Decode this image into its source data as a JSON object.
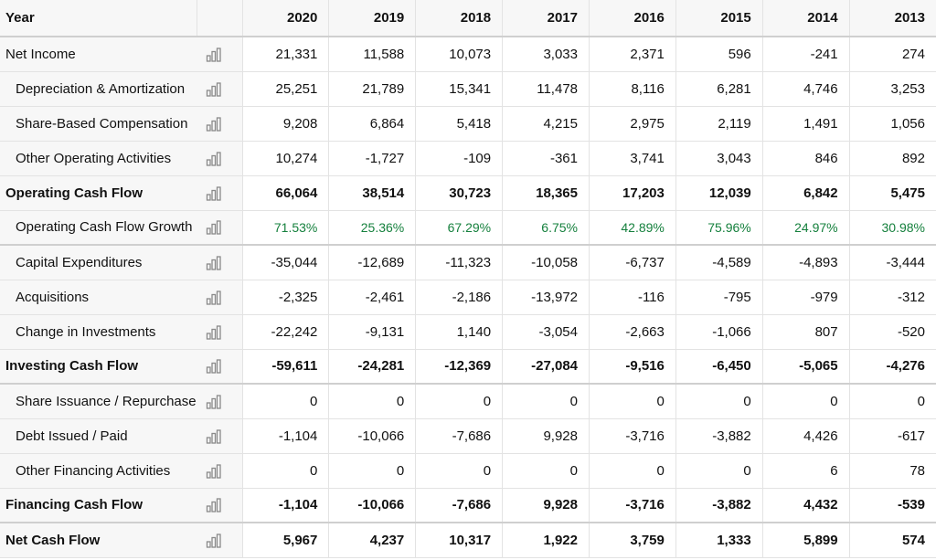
{
  "header": {
    "label": "Year",
    "years": [
      "2020",
      "2019",
      "2018",
      "2017",
      "2016",
      "2015",
      "2014",
      "2013"
    ]
  },
  "rows": [
    {
      "label": "Net Income",
      "values": [
        "21,331",
        "11,588",
        "10,073",
        "3,033",
        "2,371",
        "596",
        "-241",
        "274"
      ],
      "style": "bold-label-plain"
    },
    {
      "label": "Depreciation & Amortization",
      "values": [
        "25,251",
        "21,789",
        "15,341",
        "11,478",
        "8,116",
        "6,281",
        "4,746",
        "3,253"
      ],
      "style": "indent"
    },
    {
      "label": "Share-Based Compensation",
      "values": [
        "9,208",
        "6,864",
        "5,418",
        "4,215",
        "2,975",
        "2,119",
        "1,491",
        "1,056"
      ],
      "style": "indent"
    },
    {
      "label": "Other Operating Activities",
      "values": [
        "10,274",
        "-1,727",
        "-109",
        "-361",
        "3,741",
        "3,043",
        "846",
        "892"
      ],
      "style": "indent"
    },
    {
      "label": "Operating Cash Flow",
      "values": [
        "66,064",
        "38,514",
        "30,723",
        "18,365",
        "17,203",
        "12,039",
        "6,842",
        "5,475"
      ],
      "style": "bold"
    },
    {
      "label": "Operating Cash Flow Growth",
      "values": [
        "71.53%",
        "25.36%",
        "67.29%",
        "6.75%",
        "42.89%",
        "75.96%",
        "24.97%",
        "30.98%"
      ],
      "style": "growth"
    },
    {
      "label": "Capital Expenditures",
      "values": [
        "-35,044",
        "-12,689",
        "-11,323",
        "-10,058",
        "-6,737",
        "-4,589",
        "-4,893",
        "-3,444"
      ],
      "style": "indent"
    },
    {
      "label": "Acquisitions",
      "values": [
        "-2,325",
        "-2,461",
        "-2,186",
        "-13,972",
        "-116",
        "-795",
        "-979",
        "-312"
      ],
      "style": "indent"
    },
    {
      "label": "Change in Investments",
      "values": [
        "-22,242",
        "-9,131",
        "1,140",
        "-3,054",
        "-2,663",
        "-1,066",
        "807",
        "-520"
      ],
      "style": "indent"
    },
    {
      "label": "Investing Cash Flow",
      "values": [
        "-59,611",
        "-24,281",
        "-12,369",
        "-27,084",
        "-9,516",
        "-6,450",
        "-5,065",
        "-4,276"
      ],
      "style": "bold"
    },
    {
      "label": "Share Issuance / Repurchase",
      "values": [
        "0",
        "0",
        "0",
        "0",
        "0",
        "0",
        "0",
        "0"
      ],
      "style": "indent"
    },
    {
      "label": "Debt Issued / Paid",
      "values": [
        "-1,104",
        "-10,066",
        "-7,686",
        "9,928",
        "-3,716",
        "-3,882",
        "4,426",
        "-617"
      ],
      "style": "indent"
    },
    {
      "label": "Other Financing Activities",
      "values": [
        "0",
        "0",
        "0",
        "0",
        "0",
        "0",
        "6",
        "78"
      ],
      "style": "indent"
    },
    {
      "label": "Financing Cash Flow",
      "values": [
        "-1,104",
        "-10,066",
        "-7,686",
        "9,928",
        "-3,716",
        "-3,882",
        "4,432",
        "-539"
      ],
      "style": "bold"
    },
    {
      "label": "Net Cash Flow",
      "values": [
        "5,967",
        "4,237",
        "10,317",
        "1,922",
        "3,759",
        "1,333",
        "5,899",
        "574"
      ],
      "style": "bold"
    }
  ],
  "icons": {
    "row_chart": "bar-chart-icon"
  },
  "colors": {
    "growth": "#15803d"
  }
}
